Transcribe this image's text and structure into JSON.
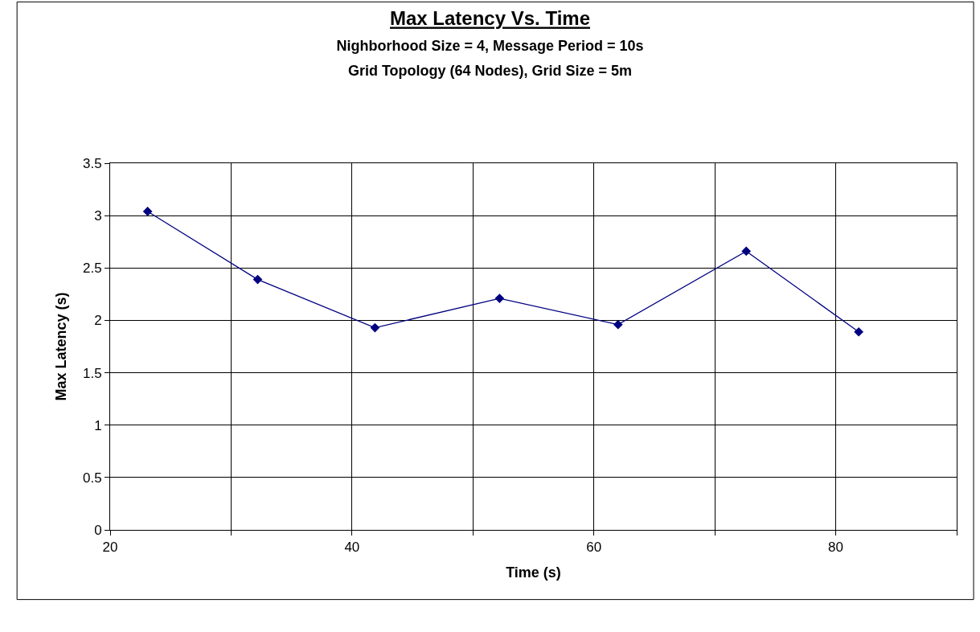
{
  "chart_data": {
    "type": "line",
    "title": "Max Latency Vs. Time",
    "subtitle": "Nighborhood Size = 4, Message Period = 10s\nGrid Topology (64 Nodes), Grid Size = 5m",
    "xlabel": "Time (s)",
    "ylabel": "Max Latency (s)",
    "x": [
      23.1,
      32.2,
      41.9,
      52.2,
      62.0,
      72.6,
      81.9
    ],
    "series": [
      {
        "color": "#000080",
        "values": [
          3.04,
          2.39,
          1.93,
          2.21,
          1.96,
          2.66,
          1.89
        ]
      }
    ],
    "xlim": [
      20,
      90
    ],
    "xticks": [
      20,
      {
        "value": 30,
        "label": null
      },
      40,
      {
        "value": 50,
        "label": null
      },
      60,
      {
        "value": 70,
        "label": null
      },
      80,
      {
        "value": 90,
        "label": null
      }
    ],
    "ylim": [
      0,
      3.5
    ],
    "yticks": [
      0,
      0.5,
      1,
      1.5,
      2,
      2.5,
      3,
      3.5
    ],
    "grid": true,
    "marker": "diamond",
    "line_style": "solid"
  }
}
